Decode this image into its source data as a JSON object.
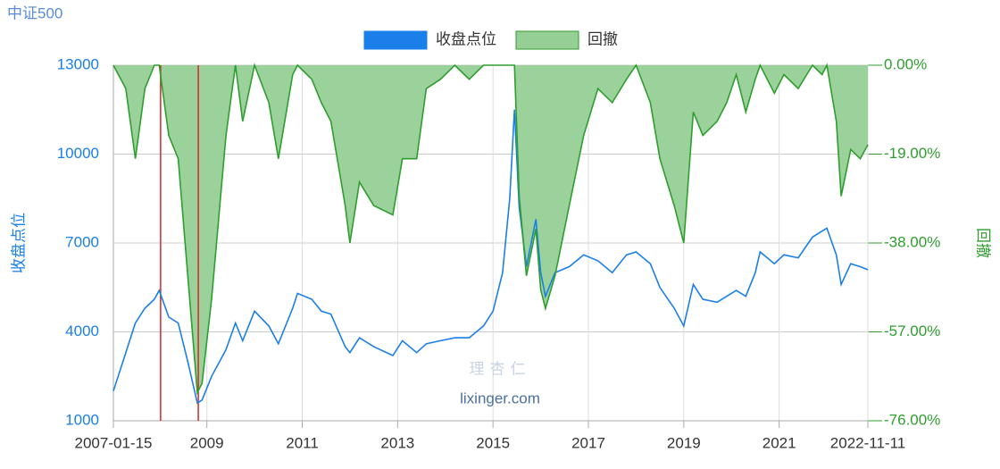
{
  "chart_data": {
    "type": "line",
    "title": "中证500",
    "y_label": "收盘点位",
    "y2_label": "回撤",
    "watermark": {
      "logo": "理杏仁",
      "url": "lixinger.com"
    },
    "x": [
      2007.04,
      2007.3,
      2007.5,
      2007.7,
      2007.9,
      2008.0,
      2008.2,
      2008.4,
      2008.6,
      2008.8,
      2008.9,
      2009.1,
      2009.4,
      2009.6,
      2009.75,
      2010.0,
      2010.3,
      2010.5,
      2010.8,
      2010.9,
      2011.2,
      2011.4,
      2011.6,
      2011.9,
      2012.0,
      2012.2,
      2012.5,
      2012.9,
      2013.1,
      2013.4,
      2013.6,
      2013.9,
      2014.2,
      2014.5,
      2014.8,
      2015.0,
      2015.2,
      2015.35,
      2015.45,
      2015.55,
      2015.7,
      2015.9,
      2016.0,
      2016.1,
      2016.3,
      2016.6,
      2016.9,
      2017.2,
      2017.5,
      2017.8,
      2018.0,
      2018.3,
      2018.5,
      2018.8,
      2019.0,
      2019.2,
      2019.4,
      2019.7,
      2019.9,
      2020.1,
      2020.3,
      2020.5,
      2020.6,
      2020.9,
      2021.1,
      2021.4,
      2021.7,
      2021.9,
      2022.0,
      2022.2,
      2022.3,
      2022.5,
      2022.7,
      2022.86
    ],
    "series": [
      {
        "name": "收盘点位",
        "color": "#1a7fe8",
        "values": [
          2000,
          3300,
          4300,
          4800,
          5100,
          5400,
          4500,
          4300,
          3000,
          1600,
          1700,
          2500,
          3400,
          4300,
          3700,
          4700,
          4200,
          3600,
          4800,
          5300,
          5100,
          4700,
          4600,
          3500,
          3300,
          3800,
          3500,
          3200,
          3700,
          3300,
          3600,
          3700,
          3800,
          3800,
          4200,
          4700,
          6000,
          8500,
          11500,
          8200,
          6200,
          7800,
          6000,
          5200,
          6000,
          6200,
          6600,
          6400,
          6000,
          6600,
          6700,
          6300,
          5500,
          4800,
          4200,
          5600,
          5100,
          5000,
          5200,
          5400,
          5200,
          6000,
          6700,
          6300,
          6600,
          6500,
          7200,
          7400,
          7500,
          6600,
          5600,
          6300,
          6200,
          6100
        ]
      },
      {
        "name": "回撤",
        "color": "#2e9e2e",
        "fill": "#96cf96",
        "axis": "y2",
        "values": [
          0,
          -5,
          -20,
          -5,
          0,
          0,
          -15,
          -20,
          -45,
          -70,
          -68,
          -50,
          -15,
          0,
          -12,
          0,
          -8,
          -20,
          -2,
          0,
          -3,
          -8,
          -12,
          -30,
          -38,
          -25,
          -30,
          -32,
          -20,
          -20,
          -5,
          -3,
          0,
          -3,
          0,
          0,
          0,
          0,
          0,
          -28,
          -45,
          -35,
          -48,
          -52,
          -45,
          -30,
          -15,
          -5,
          -8,
          -3,
          0,
          -8,
          -20,
          -30,
          -38,
          -10,
          -15,
          -12,
          -8,
          -2,
          -10,
          -3,
          0,
          -6,
          -2,
          -5,
          0,
          -2,
          0,
          -12,
          -28,
          -18,
          -20,
          -17
        ]
      }
    ],
    "markers": {
      "color": "#d62728",
      "x": [
        2008.03,
        2008.82
      ]
    },
    "xlim": [
      2007.04,
      2022.86
    ],
    "xticks": [
      {
        "value": 2007.04,
        "label": "2007-01-15"
      },
      2009,
      2011,
      2013,
      2015,
      2017,
      2019,
      2021,
      {
        "value": 2022.86,
        "label": "2022-11-11"
      }
    ],
    "ylim": [
      1000,
      13000
    ],
    "yticks": [
      1000,
      4000,
      7000,
      10000,
      13000
    ],
    "y2lim": [
      -76,
      0
    ],
    "y2ticks": [
      {
        "value": -76,
        "label": "-76.00%"
      },
      {
        "value": -57,
        "label": "-57.00%"
      },
      {
        "value": -38,
        "label": "-38.00%"
      },
      {
        "value": -19,
        "label": "-19.00%"
      },
      {
        "value": 0,
        "label": "0.00%"
      }
    ],
    "grid": true
  }
}
